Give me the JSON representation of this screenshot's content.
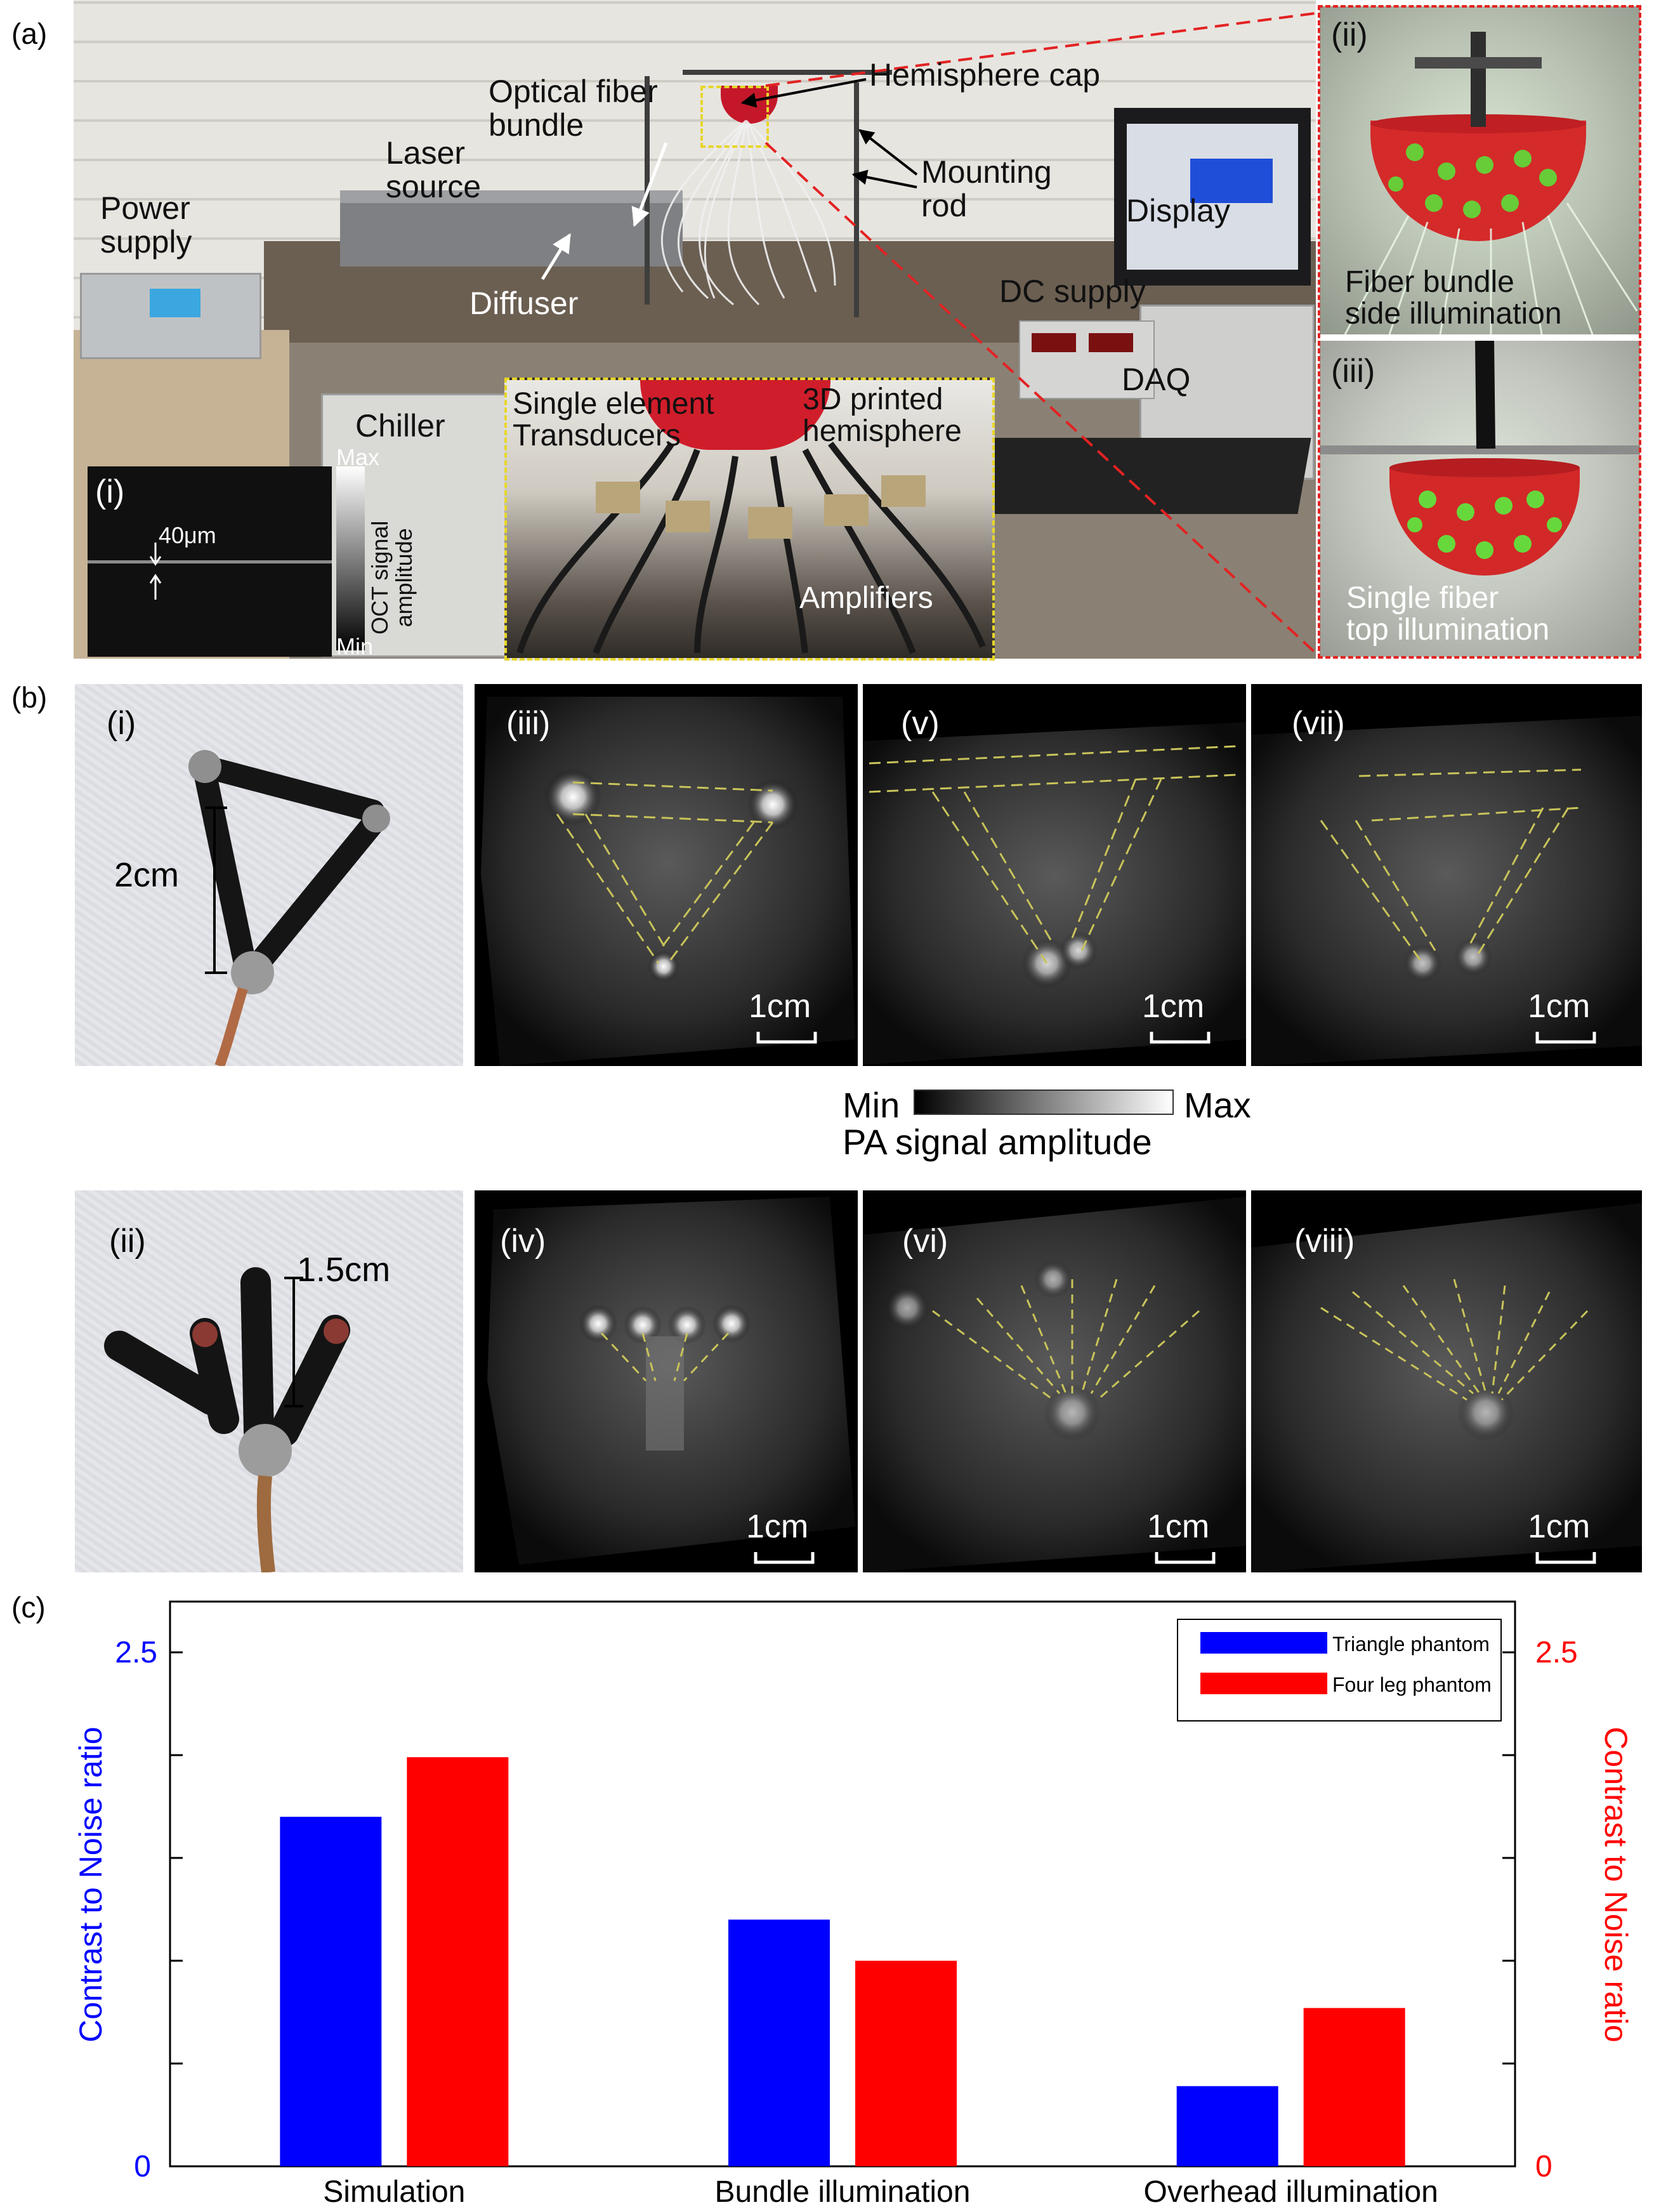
{
  "panel_a": {
    "label": "(a)",
    "callouts": {
      "hemisphere_cap": "Hemisphere cap",
      "optical_fiber_bundle": "Optical fiber\nbundle",
      "laser_source": "Laser\nsource",
      "mounting_rod": "Mounting\nrod",
      "power_supply": "Power\nsupply",
      "display": "Display",
      "diffuser": "Diffuser",
      "dc_supply": "DC supply",
      "daq": "DAQ",
      "chiller": "Chiller"
    },
    "inset_i": {
      "label": "(i)",
      "thickness": "40μm",
      "colorbar_max": "Max",
      "colorbar_min": "Min",
      "colorbar_title": "OCT signal\namplitude"
    },
    "inset_transducers": {
      "single_element": "Single element\nTransducers",
      "printed_hemisphere": "3D printed\nhemisphere",
      "amplifiers": "Amplifiers"
    },
    "inset_ii": {
      "label": "(ii)",
      "caption": "Fiber bundle\nside illumination"
    },
    "inset_iii": {
      "label": "(iii)",
      "caption": "Single fiber\ntop illumination"
    }
  },
  "panel_b": {
    "label": "(b)",
    "photo_i": {
      "label": "(i)",
      "dimension": "2cm"
    },
    "photo_ii": {
      "label": "(ii)",
      "dimension": "1.5cm"
    },
    "images": [
      {
        "label": "(iii)",
        "scale": "1cm"
      },
      {
        "label": "(v)",
        "scale": "1cm"
      },
      {
        "label": "(vii)",
        "scale": "1cm"
      },
      {
        "label": "(iv)",
        "scale": "1cm"
      },
      {
        "label": "(vi)",
        "scale": "1cm"
      },
      {
        "label": "(viii)",
        "scale": "1cm"
      }
    ],
    "colorbar": {
      "min": "Min",
      "max": "Max",
      "title": "PA signal amplitude"
    }
  },
  "panel_c": {
    "label": "(c)",
    "chart_data": {
      "type": "bar",
      "categories": [
        "Simulation",
        "Bundle illumination",
        "Overhead illumination"
      ],
      "series": [
        {
          "name": "Triangle phantom",
          "color": "#0000ff",
          "axis": "left",
          "values": [
            1.7,
            1.2,
            0.39
          ]
        },
        {
          "name": "Four leg phantom",
          "color": "#ff0000",
          "axis": "right",
          "values": [
            1.99,
            1.0,
            0.77
          ]
        }
      ],
      "ylabel_left": "Contrast to Noise ratio",
      "ylabel_right": "Contrast to Noise ratio",
      "ylim": [
        0,
        2.5
      ],
      "yticks_labeled": [
        "0",
        "2.5"
      ],
      "yticks_right_labeled": [
        "0",
        "2.5"
      ],
      "legend_position": "top-right",
      "grid": false
    }
  },
  "colors": {
    "left_axis": "#0000ff",
    "right_axis": "#ff0000",
    "inset_yellow": "#e8d62a",
    "inset_red": "#e32222"
  }
}
